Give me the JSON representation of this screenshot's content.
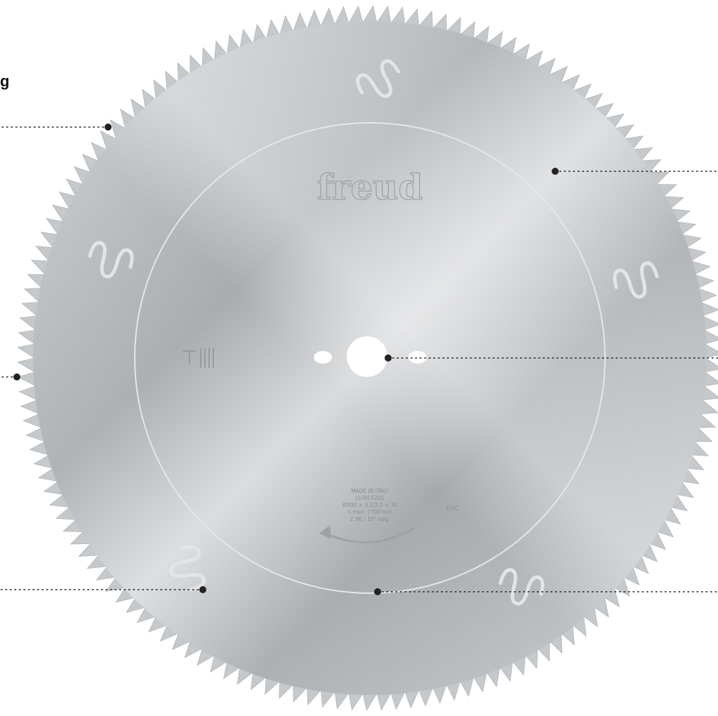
{
  "heading_fragment": "g",
  "blade": {
    "brand": "freud",
    "label_lines": [
      "MADE IN ITALY",
      "LU3H 0201",
      "Ø300 × 3,2/2,2 × 30",
      "n max. 7700 min",
      "Z 96 / 10° neg."
    ],
    "body_color": "#b9bcbe",
    "tooth_color": "#c6c9cb",
    "callout_color": "#222222"
  },
  "callouts": [
    {
      "id": "teeth-top-left"
    },
    {
      "id": "rim-left"
    },
    {
      "id": "laser-slot-bottom-left"
    },
    {
      "id": "body-top-right"
    },
    {
      "id": "bore-center"
    },
    {
      "id": "inner-ring-bottom"
    }
  ]
}
